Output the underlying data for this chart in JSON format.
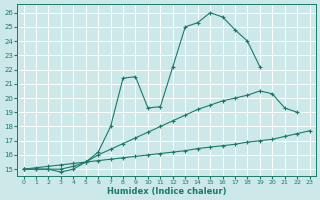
{
  "xlabel": "Humidex (Indice chaleur)",
  "bg_color": "#cde8e8",
  "grid_color": "#ffffff",
  "line_color": "#1a7a6a",
  "xlim": [
    -0.5,
    23.5
  ],
  "ylim": [
    14.5,
    26.6
  ],
  "xticks": [
    0,
    1,
    2,
    3,
    4,
    5,
    6,
    7,
    8,
    9,
    10,
    11,
    12,
    13,
    14,
    15,
    16,
    17,
    18,
    19,
    20,
    21,
    22,
    23
  ],
  "yticks": [
    15,
    16,
    17,
    18,
    19,
    20,
    21,
    22,
    23,
    24,
    25,
    26
  ],
  "line1_x": [
    0,
    1,
    2,
    3,
    4,
    5,
    6,
    7,
    8,
    9,
    10,
    11,
    12,
    13,
    14,
    15,
    16,
    17,
    18,
    19
  ],
  "line1_y": [
    15,
    15,
    15,
    14.8,
    15.0,
    15.5,
    16.2,
    18.0,
    21.4,
    21.5,
    19.3,
    19.4,
    22.2,
    25.0,
    25.3,
    26.0,
    25.7,
    24.8,
    24.0,
    22.2
  ],
  "line2_x": [
    0,
    1,
    2,
    3,
    4,
    5,
    6,
    7,
    8,
    9,
    10,
    11,
    12,
    13,
    14,
    15,
    16,
    17,
    18,
    19,
    20,
    21,
    22
  ],
  "line2_y": [
    15,
    15,
    15,
    15,
    15.2,
    15.5,
    16.0,
    16.4,
    16.8,
    17.2,
    17.6,
    18.0,
    18.4,
    18.8,
    19.2,
    19.5,
    19.8,
    20.0,
    20.2,
    20.5,
    20.3,
    19.3,
    19.0
  ],
  "line3_x": [
    0,
    1,
    2,
    3,
    4,
    5,
    6,
    7,
    8,
    9,
    10,
    11,
    12,
    13,
    14,
    15,
    16,
    17,
    18,
    19,
    20,
    21,
    22,
    23
  ],
  "line3_y": [
    15,
    15.1,
    15.2,
    15.3,
    15.4,
    15.5,
    15.6,
    15.7,
    15.8,
    15.9,
    16.0,
    16.1,
    16.2,
    16.3,
    16.45,
    16.55,
    16.65,
    16.75,
    16.9,
    17.0,
    17.1,
    17.3,
    17.5,
    17.7
  ]
}
